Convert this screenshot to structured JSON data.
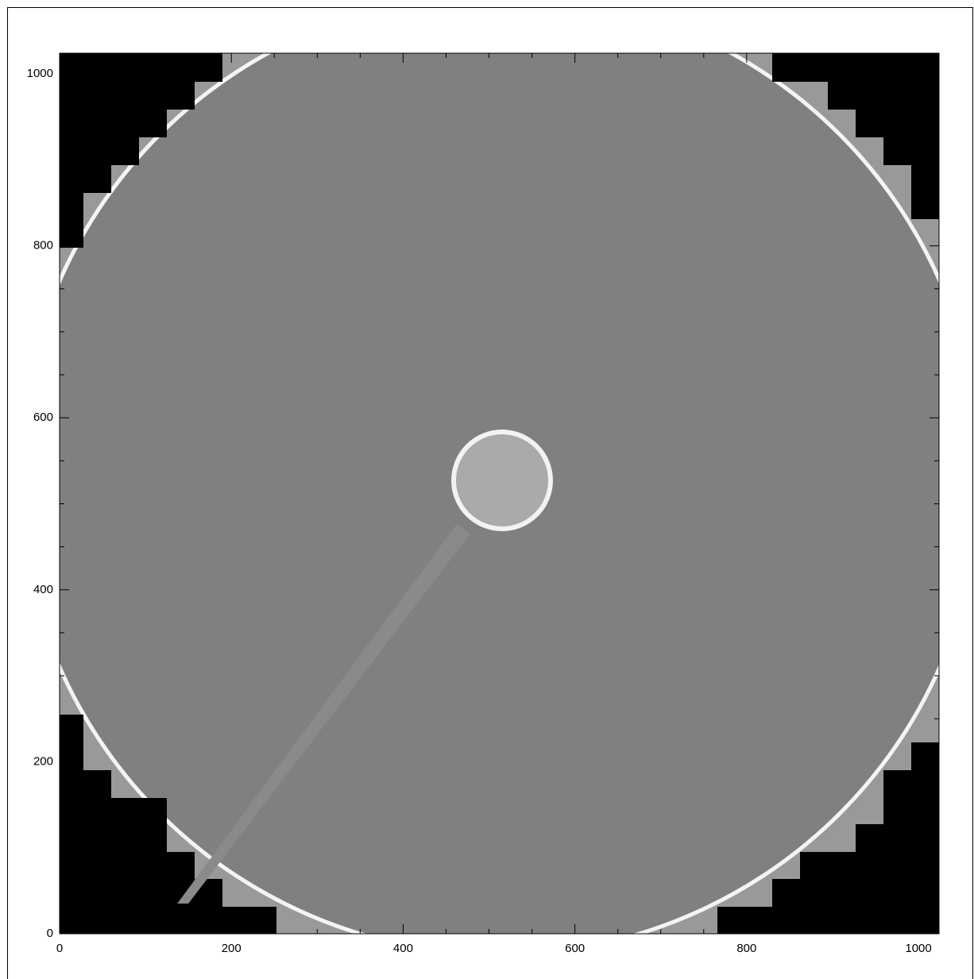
{
  "chart_data": {
    "type": "image",
    "xlim": [
      0,
      1024
    ],
    "ylim": [
      0,
      1024
    ],
    "xticks": [
      0,
      200,
      400,
      600,
      800,
      1000
    ],
    "yticks": [
      0,
      200,
      400,
      600,
      800,
      1000
    ],
    "xminorticks": [
      50,
      100,
      150,
      250,
      300,
      350,
      450,
      500,
      550,
      650,
      700,
      750,
      850,
      900,
      950
    ],
    "yminorticks": [
      50,
      100,
      150,
      250,
      300,
      350,
      450,
      500,
      550,
      650,
      700,
      750,
      850,
      900,
      950
    ]
  }
}
